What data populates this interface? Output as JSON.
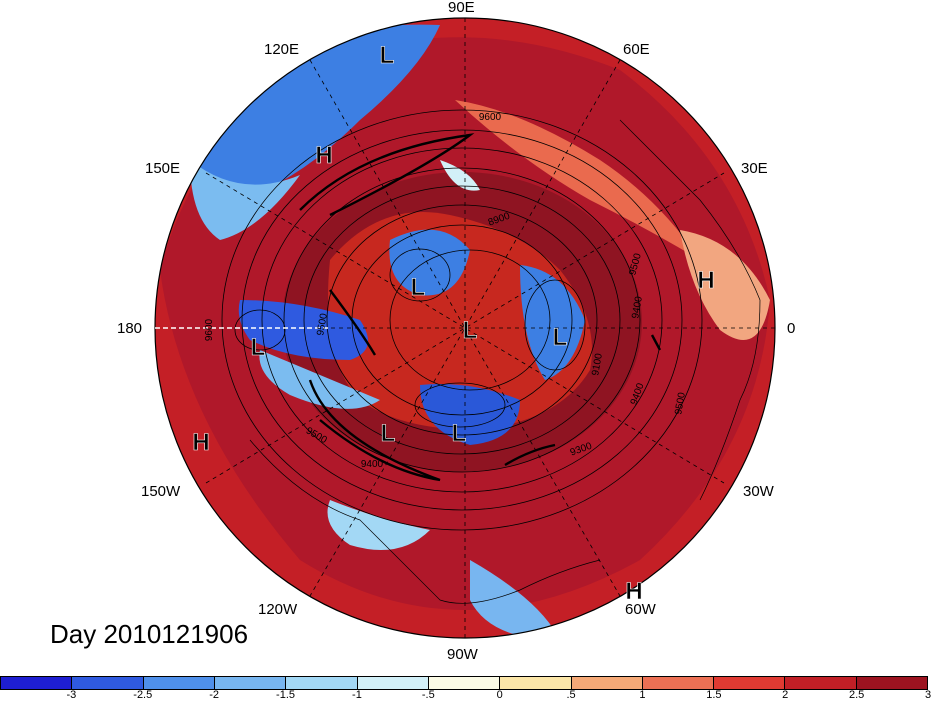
{
  "title": "Day 2010121906",
  "longitude_labels": [
    {
      "text": "90E"
    },
    {
      "text": "60E"
    },
    {
      "text": "120E"
    },
    {
      "text": "30E"
    },
    {
      "text": "150E"
    },
    {
      "text": "0"
    },
    {
      "text": "180"
    },
    {
      "text": "150W"
    },
    {
      "text": "30W"
    },
    {
      "text": "120W"
    },
    {
      "text": "60W"
    },
    {
      "text": "90W"
    }
  ],
  "pressure_centers": [
    "L",
    "H",
    "L",
    "L",
    "H",
    "L",
    "L",
    "L",
    "H",
    "L",
    "L",
    "H"
  ],
  "contour_labels": [
    "9600",
    "8900",
    "9500",
    "9100",
    "9400",
    "9500",
    "9600",
    "9500",
    "9300",
    "9400",
    "9500",
    "9400"
  ],
  "colorbar": {
    "colors": [
      "#1e1ed2",
      "#2f5ae0",
      "#4f90ea",
      "#78b6f0",
      "#a3d8f5",
      "#d2f0f8",
      "#fbfbe6",
      "#fbe6a8",
      "#f5a977",
      "#ec7054",
      "#e03a32",
      "#c11f26",
      "#9c1320"
    ],
    "ticks": [
      "-3",
      "-2.5",
      "-2",
      "-1.5",
      "-1",
      "-.5",
      "0",
      ".5",
      "1",
      "1.5",
      "2",
      "2.5",
      "3"
    ]
  }
}
